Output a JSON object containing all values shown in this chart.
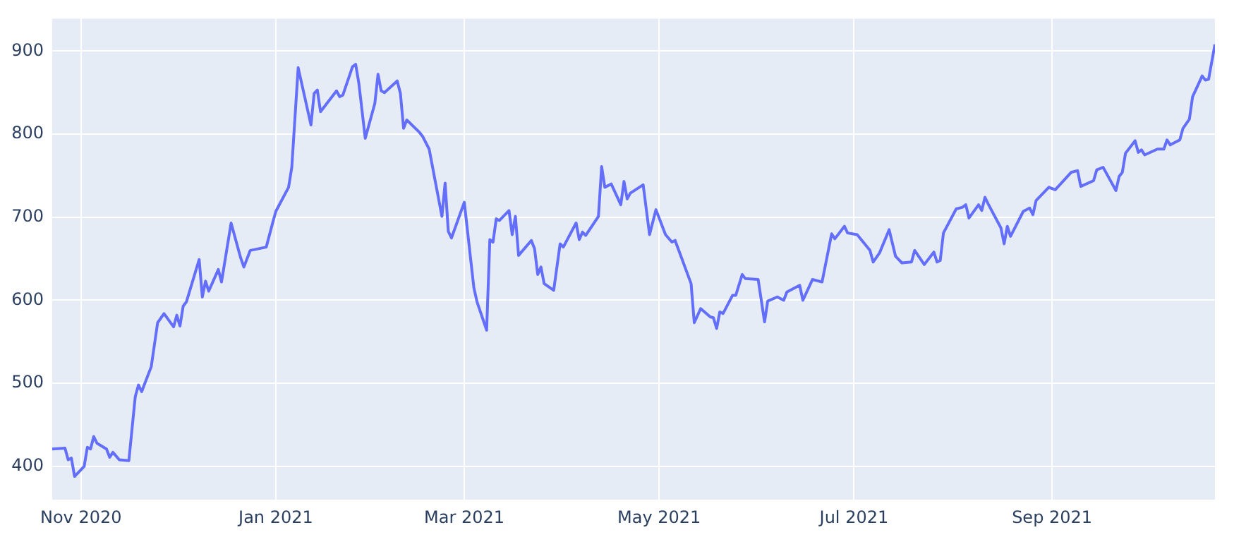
{
  "chart_data": {
    "type": "line",
    "x": [
      "2020-10-23",
      "2020-10-27",
      "2020-10-28",
      "2020-10-29",
      "2020-10-30",
      "2020-11-02",
      "2020-11-03",
      "2020-11-04",
      "2020-11-05",
      "2020-11-06",
      "2020-11-09",
      "2020-11-10",
      "2020-11-11",
      "2020-11-13",
      "2020-11-16",
      "2020-11-18",
      "2020-11-19",
      "2020-11-20",
      "2020-11-23",
      "2020-11-25",
      "2020-11-27",
      "2020-11-30",
      "2020-12-01",
      "2020-12-02",
      "2020-12-03",
      "2020-12-04",
      "2020-12-08",
      "2020-12-09",
      "2020-12-10",
      "2020-12-11",
      "2020-12-14",
      "2020-12-15",
      "2020-12-18",
      "2020-12-21",
      "2020-12-22",
      "2020-12-24",
      "2020-12-29",
      "2020-12-31",
      "2021-01-01",
      "2021-01-05",
      "2021-01-06",
      "2021-01-08",
      "2021-01-12",
      "2021-01-13",
      "2021-01-14",
      "2021-01-15",
      "2021-01-20",
      "2021-01-21",
      "2021-01-22",
      "2021-01-25",
      "2021-01-26",
      "2021-01-27",
      "2021-01-29",
      "2021-02-01",
      "2021-02-02",
      "2021-02-03",
      "2021-02-04",
      "2021-02-08",
      "2021-02-09",
      "2021-02-10",
      "2021-02-11",
      "2021-02-15",
      "2021-02-16",
      "2021-02-18",
      "2021-02-22",
      "2021-02-23",
      "2021-02-24",
      "2021-02-25",
      "2021-03-01",
      "2021-03-04",
      "2021-03-05",
      "2021-03-08",
      "2021-03-09",
      "2021-03-10",
      "2021-03-11",
      "2021-03-12",
      "2021-03-15",
      "2021-03-16",
      "2021-03-17",
      "2021-03-18",
      "2021-03-22",
      "2021-03-23",
      "2021-03-24",
      "2021-03-25",
      "2021-03-26",
      "2021-03-29",
      "2021-03-31",
      "2021-04-01",
      "2021-04-05",
      "2021-04-06",
      "2021-04-07",
      "2021-04-08",
      "2021-04-12",
      "2021-04-13",
      "2021-04-14",
      "2021-04-16",
      "2021-04-19",
      "2021-04-20",
      "2021-04-21",
      "2021-04-22",
      "2021-04-26",
      "2021-04-27",
      "2021-04-28",
      "2021-04-30",
      "2021-05-03",
      "2021-05-05",
      "2021-05-06",
      "2021-05-11",
      "2021-05-12",
      "2021-05-14",
      "2021-05-17",
      "2021-05-18",
      "2021-05-19",
      "2021-05-20",
      "2021-05-21",
      "2021-05-24",
      "2021-05-25",
      "2021-05-27",
      "2021-05-28",
      "2021-06-01",
      "2021-06-03",
      "2021-06-04",
      "2021-06-07",
      "2021-06-09",
      "2021-06-10",
      "2021-06-14",
      "2021-06-15",
      "2021-06-18",
      "2021-06-21",
      "2021-06-24",
      "2021-06-25",
      "2021-06-28",
      "2021-06-29",
      "2021-07-02",
      "2021-07-06",
      "2021-07-07",
      "2021-07-09",
      "2021-07-12",
      "2021-07-14",
      "2021-07-16",
      "2021-07-19",
      "2021-07-20",
      "2021-07-23",
      "2021-07-26",
      "2021-07-27",
      "2021-07-28",
      "2021-07-29",
      "2021-08-02",
      "2021-08-04",
      "2021-08-05",
      "2021-08-06",
      "2021-08-09",
      "2021-08-10",
      "2021-08-11",
      "2021-08-12",
      "2021-08-16",
      "2021-08-17",
      "2021-08-18",
      "2021-08-19",
      "2021-08-23",
      "2021-08-25",
      "2021-08-26",
      "2021-08-27",
      "2021-08-31",
      "2021-09-02",
      "2021-09-07",
      "2021-09-09",
      "2021-09-10",
      "2021-09-14",
      "2021-09-15",
      "2021-09-17",
      "2021-09-21",
      "2021-09-22",
      "2021-09-23",
      "2021-09-24",
      "2021-09-27",
      "2021-09-28",
      "2021-09-29",
      "2021-09-30",
      "2021-10-04",
      "2021-10-06",
      "2021-10-07",
      "2021-10-08",
      "2021-10-11",
      "2021-10-12",
      "2021-10-14",
      "2021-10-15",
      "2021-10-18",
      "2021-10-19",
      "2021-10-20",
      "2021-10-22"
    ],
    "series": [
      {
        "color": "#636efa",
        "values": [
          421,
          422,
          408,
          410,
          388,
          400,
          423,
          421,
          436,
          428,
          421,
          411,
          417,
          408,
          407,
          484,
          498,
          490,
          520,
          573,
          584,
          568,
          582,
          569,
          593,
          598,
          649,
          604,
          623,
          611,
          637,
          622,
          693,
          651,
          640,
          660,
          664,
          693,
          707,
          736,
          760,
          880,
          811,
          849,
          853,
          827,
          852,
          845,
          847,
          881,
          884,
          861,
          795,
          837,
          872,
          852,
          850,
          864,
          849,
          807,
          817,
          802,
          797,
          782,
          701,
          741,
          683,
          675,
          718,
          615,
          598,
          564,
          673,
          670,
          698,
          696,
          708,
          679,
          701,
          654,
          672,
          662,
          631,
          640,
          620,
          612,
          668,
          664,
          693,
          673,
          682,
          678,
          701,
          761,
          736,
          740,
          715,
          743,
          722,
          729,
          739,
          709,
          679,
          709,
          679,
          670,
          672,
          620,
          573,
          590,
          580,
          579,
          566,
          586,
          584,
          606,
          606,
          631,
          626,
          625,
          574,
          599,
          604,
          600,
          610,
          618,
          600,
          625,
          622,
          680,
          674,
          689,
          681,
          679,
          660,
          646,
          657,
          685,
          653,
          645,
          646,
          660,
          643,
          658,
          646,
          648,
          681,
          710,
          712,
          715,
          699,
          715,
          708,
          724,
          716,
          687,
          668,
          689,
          677,
          707,
          711,
          703,
          720,
          736,
          733,
          754,
          756,
          737,
          744,
          757,
          760,
          732,
          749,
          754,
          777,
          792,
          778,
          781,
          775,
          782,
          782,
          793,
          787,
          793,
          807,
          818,
          845,
          870,
          865,
          866,
          908
        ]
      }
    ],
    "xlim": [
      "2020-10-23",
      "2021-10-22"
    ],
    "xticks": [
      {
        "value": "2020-11-01",
        "label": "Nov 2020"
      },
      {
        "value": "2021-01-01",
        "label": "Jan 2021"
      },
      {
        "value": "2021-03-01",
        "label": "Mar 2021"
      },
      {
        "value": "2021-05-01",
        "label": "May 2021"
      },
      {
        "value": "2021-07-01",
        "label": "Jul 2021"
      },
      {
        "value": "2021-09-01",
        "label": "Sep 2021"
      }
    ],
    "ylim": [
      360,
      939
    ],
    "yticks": [
      400,
      500,
      600,
      700,
      800,
      900
    ],
    "grid": true
  }
}
